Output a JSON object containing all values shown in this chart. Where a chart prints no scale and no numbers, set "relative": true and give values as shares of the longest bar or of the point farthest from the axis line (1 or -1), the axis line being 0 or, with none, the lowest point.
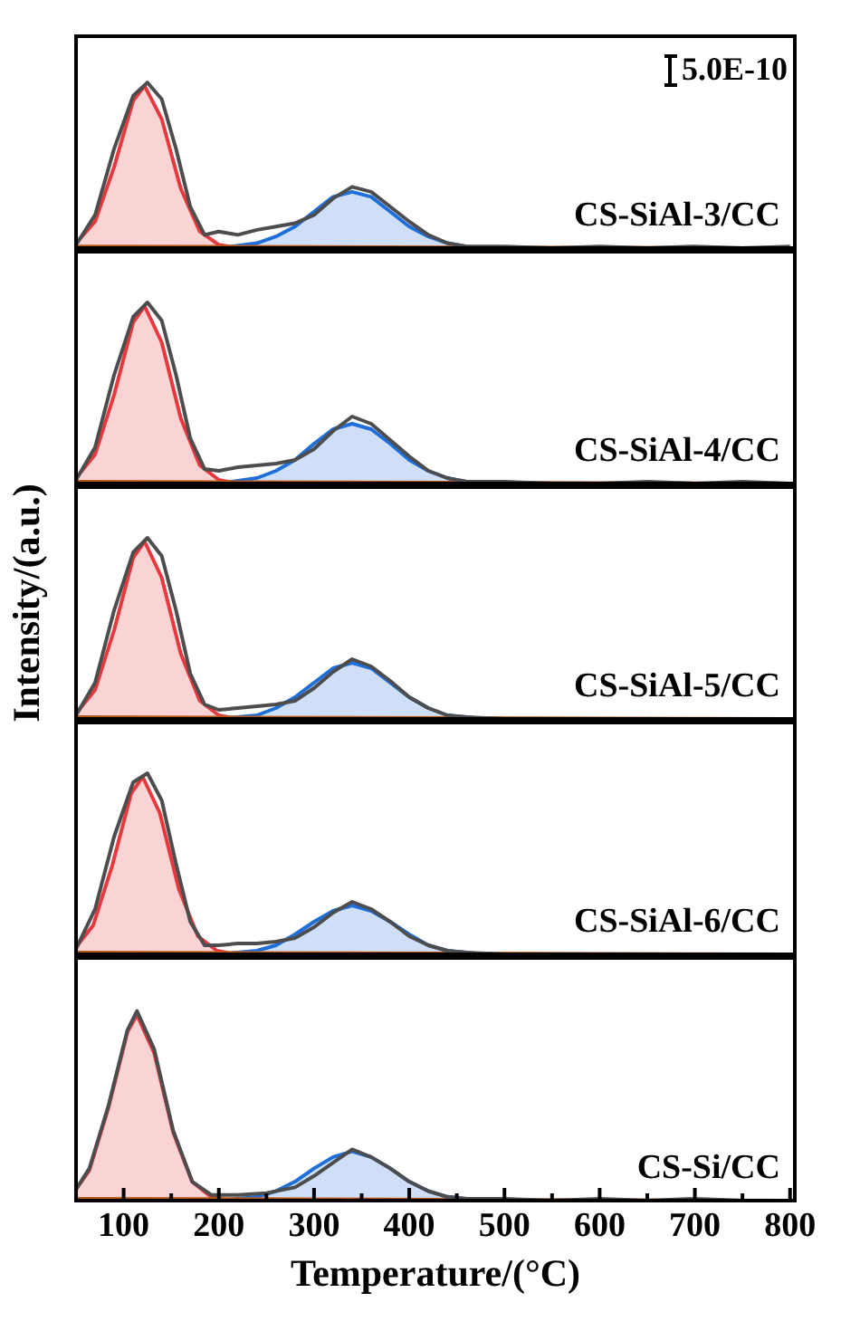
{
  "chart_data": [
    {
      "type": "line",
      "relative": true,
      "xlim": [
        50,
        805
      ],
      "tick_labels": false,
      "annotations": [
        "CS-SiAl-3/CC",
        "5.0E-10"
      ],
      "series": [
        {
          "type": "area",
          "color": "#e8383d",
          "x": [
            50,
            70,
            90,
            110,
            122,
            140,
            160,
            180,
            200,
            220
          ],
          "values": [
            0.03,
            0.16,
            0.49,
            0.89,
            0.98,
            0.78,
            0.36,
            0.1,
            0.02,
            0
          ]
        },
        {
          "type": "area",
          "color": "#1e6fd9",
          "x": [
            200,
            240,
            260,
            280,
            300,
            320,
            340,
            360,
            380,
            400,
            420,
            440,
            460,
            480
          ],
          "values": [
            0,
            0.03,
            0.07,
            0.13,
            0.22,
            0.31,
            0.34,
            0.31,
            0.22,
            0.13,
            0.07,
            0.03,
            0.01,
            0
          ]
        },
        {
          "type": "line",
          "color": "#4d4d4d",
          "x": [
            50,
            70,
            90,
            110,
            125,
            140,
            155,
            170,
            185,
            200,
            220,
            240,
            260,
            280,
            300,
            320,
            340,
            360,
            380,
            400,
            420,
            440,
            460,
            500,
            550,
            600,
            650,
            700,
            750,
            800
          ],
          "values": [
            0.02,
            0.2,
            0.6,
            0.92,
            1,
            0.9,
            0.6,
            0.25,
            0.08,
            0.1,
            0.08,
            0.11,
            0.13,
            0.15,
            0.2,
            0.3,
            0.37,
            0.34,
            0.25,
            0.16,
            0.08,
            0.03,
            0.01,
            0.01,
            0,
            0.01,
            0,
            0.01,
            0,
            0.01
          ]
        },
        {
          "type": "line",
          "color": "#b5571b",
          "x": [
            50,
            800
          ],
          "values": [
            0.01,
            0
          ]
        }
      ]
    },
    {
      "type": "line",
      "relative": true,
      "xlim": [
        50,
        805
      ],
      "tick_labels": false,
      "annotations": [
        "CS-SiAl-4/CC"
      ],
      "series": [
        {
          "type": "area",
          "color": "#e8383d",
          "x": [
            50,
            70,
            90,
            110,
            122,
            140,
            160,
            180,
            200,
            220
          ],
          "values": [
            0.03,
            0.16,
            0.49,
            0.89,
            0.98,
            0.78,
            0.36,
            0.1,
            0.02,
            0
          ]
        },
        {
          "type": "area",
          "color": "#1e6fd9",
          "x": [
            200,
            240,
            260,
            280,
            300,
            320,
            340,
            360,
            380,
            400,
            420,
            440,
            460,
            480
          ],
          "values": [
            0,
            0.03,
            0.07,
            0.13,
            0.22,
            0.3,
            0.33,
            0.3,
            0.22,
            0.13,
            0.07,
            0.03,
            0.01,
            0
          ]
        },
        {
          "type": "line",
          "color": "#4d4d4d",
          "x": [
            50,
            70,
            90,
            110,
            125,
            140,
            155,
            170,
            185,
            200,
            220,
            240,
            260,
            280,
            300,
            320,
            340,
            360,
            380,
            400,
            420,
            440,
            460,
            500,
            550,
            600,
            650,
            700,
            750,
            800
          ],
          "values": [
            0.02,
            0.2,
            0.6,
            0.92,
            1,
            0.9,
            0.6,
            0.25,
            0.08,
            0.07,
            0.09,
            0.1,
            0.11,
            0.13,
            0.19,
            0.29,
            0.37,
            0.33,
            0.24,
            0.15,
            0.07,
            0.03,
            0.01,
            0.01,
            0,
            0,
            0.01,
            0,
            0.01,
            0
          ]
        },
        {
          "type": "line",
          "color": "#b5571b",
          "x": [
            50,
            800
          ],
          "values": [
            0.01,
            0
          ]
        }
      ]
    },
    {
      "type": "line",
      "relative": true,
      "xlim": [
        50,
        805
      ],
      "tick_labels": false,
      "ylabel": "Intensity/(a.u.)",
      "annotations": [
        "CS-SiAl-5/CC"
      ],
      "series": [
        {
          "type": "area",
          "color": "#e8383d",
          "x": [
            50,
            70,
            90,
            110,
            122,
            140,
            160,
            180,
            200,
            220
          ],
          "values": [
            0.03,
            0.16,
            0.49,
            0.89,
            0.98,
            0.78,
            0.36,
            0.1,
            0.02,
            0
          ]
        },
        {
          "type": "area",
          "color": "#1e6fd9",
          "x": [
            200,
            240,
            260,
            280,
            300,
            320,
            340,
            360,
            380,
            400,
            420,
            440,
            460,
            480
          ],
          "values": [
            0,
            0.02,
            0.06,
            0.12,
            0.2,
            0.28,
            0.31,
            0.28,
            0.2,
            0.12,
            0.06,
            0.02,
            0.01,
            0
          ]
        },
        {
          "type": "line",
          "color": "#4d4d4d",
          "x": [
            50,
            70,
            90,
            110,
            125,
            140,
            155,
            170,
            185,
            200,
            220,
            240,
            260,
            280,
            300,
            320,
            340,
            360,
            380,
            400,
            420,
            440,
            460,
            500,
            550,
            600,
            650,
            700,
            750,
            800
          ],
          "values": [
            0.02,
            0.2,
            0.6,
            0.92,
            1,
            0.9,
            0.6,
            0.25,
            0.08,
            0.05,
            0.06,
            0.07,
            0.08,
            0.1,
            0.17,
            0.26,
            0.33,
            0.29,
            0.21,
            0.12,
            0.06,
            0.02,
            0.01,
            0,
            0,
            0,
            0,
            0,
            0,
            0
          ]
        },
        {
          "type": "line",
          "color": "#b5571b",
          "x": [
            50,
            800
          ],
          "values": [
            0.01,
            0
          ]
        }
      ]
    },
    {
      "type": "line",
      "relative": true,
      "xlim": [
        50,
        805
      ],
      "tick_labels": false,
      "annotations": [
        "CS-SiAl-6/CC"
      ],
      "series": [
        {
          "type": "area",
          "color": "#e8383d",
          "x": [
            50,
            68,
            88,
            108,
            120,
            138,
            158,
            178,
            198,
            218
          ],
          "values": [
            0.04,
            0.16,
            0.49,
            0.89,
            0.98,
            0.78,
            0.36,
            0.1,
            0.02,
            0
          ]
        },
        {
          "type": "area",
          "color": "#1e6fd9",
          "x": [
            200,
            240,
            260,
            280,
            300,
            320,
            340,
            360,
            380,
            400,
            420,
            440,
            460,
            480
          ],
          "values": [
            0,
            0.02,
            0.05,
            0.11,
            0.18,
            0.24,
            0.27,
            0.24,
            0.18,
            0.11,
            0.05,
            0.02,
            0.01,
            0
          ]
        },
        {
          "type": "line",
          "color": "#4d4d4d",
          "x": [
            50,
            70,
            90,
            110,
            125,
            140,
            155,
            170,
            185,
            200,
            220,
            240,
            260,
            280,
            300,
            320,
            340,
            360,
            380,
            400,
            420,
            440,
            460,
            500,
            550,
            600,
            650,
            700,
            750,
            800
          ],
          "values": [
            0.03,
            0.25,
            0.65,
            0.95,
            1,
            0.85,
            0.5,
            0.18,
            0.05,
            0.05,
            0.06,
            0.06,
            0.07,
            0.09,
            0.15,
            0.23,
            0.29,
            0.25,
            0.18,
            0.1,
            0.05,
            0.02,
            0.01,
            0,
            0,
            0,
            0,
            0,
            0,
            0
          ]
        },
        {
          "type": "line",
          "color": "#b5571b",
          "x": [
            50,
            800
          ],
          "values": [
            0.01,
            0
          ]
        }
      ]
    },
    {
      "type": "line",
      "relative": true,
      "xlim": [
        50,
        805
      ],
      "xticks": [
        100,
        {
          "value": 150,
          "label": null
        },
        200,
        {
          "value": 250,
          "label": null
        },
        300,
        {
          "value": 350,
          "label": null
        },
        400,
        {
          "value": 450,
          "label": null
        },
        500,
        {
          "value": 550,
          "label": null
        },
        600,
        {
          "value": 650,
          "label": null
        },
        700,
        {
          "value": 750,
          "label": null
        },
        800
      ],
      "tick_labels": "x",
      "xlabel": "Temperature/(°C)",
      "annotations": [
        "CS-Si/CC"
      ],
      "series": [
        {
          "type": "area",
          "color": "#e8383d",
          "x": [
            50,
            64,
            84,
            104,
            114,
            132,
            152,
            172,
            192,
            212
          ],
          "values": [
            0.06,
            0.16,
            0.49,
            0.89,
            0.98,
            0.78,
            0.36,
            0.1,
            0.02,
            0
          ]
        },
        {
          "type": "area",
          "color": "#1e6fd9",
          "x": [
            200,
            240,
            260,
            280,
            300,
            320,
            340,
            360,
            380,
            400,
            420,
            440,
            460,
            480
          ],
          "values": [
            0,
            0.02,
            0.05,
            0.1,
            0.17,
            0.23,
            0.26,
            0.23,
            0.17,
            0.1,
            0.05,
            0.02,
            0.01,
            0
          ]
        },
        {
          "type": "line",
          "color": "#4d4d4d",
          "x": [
            50,
            64,
            84,
            104,
            114,
            132,
            152,
            172,
            192,
            220,
            250,
            280,
            300,
            320,
            340,
            360,
            380,
            400,
            420,
            440,
            460,
            500,
            550,
            600,
            650,
            700,
            750,
            800
          ],
          "values": [
            0.06,
            0.17,
            0.5,
            0.9,
            1,
            0.8,
            0.37,
            0.1,
            0.03,
            0.03,
            0.04,
            0.07,
            0.13,
            0.2,
            0.27,
            0.23,
            0.17,
            0.1,
            0.05,
            0.02,
            0.01,
            0.01,
            0,
            0.01,
            0,
            0.01,
            0,
            0
          ]
        },
        {
          "type": "line",
          "color": "#b5571b",
          "x": [
            50,
            800
          ],
          "values": [
            0.01,
            0
          ]
        }
      ]
    }
  ]
}
